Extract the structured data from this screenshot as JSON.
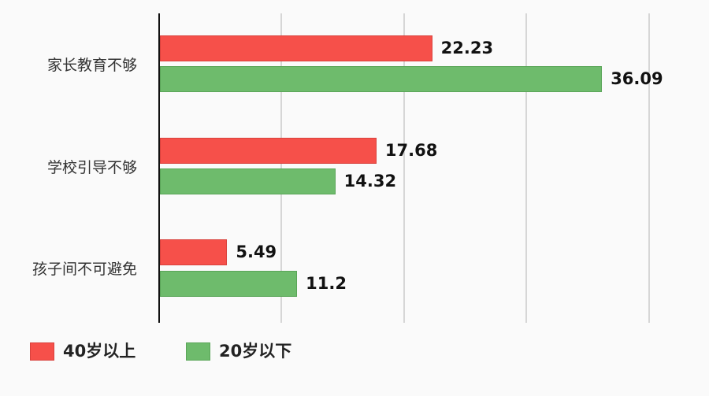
{
  "chart_data": {
    "type": "bar",
    "orientation": "horizontal",
    "title": "",
    "xlabel": "",
    "ylabel": "",
    "xlim": [
      0,
      40
    ],
    "grid": true,
    "gridlines_at": [
      10,
      20,
      30,
      40
    ],
    "tick_labels_visible": false,
    "legend_position": "bottom-left",
    "categories": [
      "家长教育不够",
      "学校引导不够",
      "孩子间不可避免"
    ],
    "series": [
      {
        "name": "40岁以上",
        "color": "#f6504a",
        "values": [
          22.23,
          17.68,
          5.49
        ]
      },
      {
        "name": "20岁以下",
        "color": "#6ebb6c",
        "values": [
          36.09,
          14.32,
          11.2
        ]
      }
    ],
    "value_labels": [
      [
        "22.23",
        "17.68",
        "5.49"
      ],
      [
        "36.09",
        "14.32",
        "11.2"
      ]
    ]
  },
  "colors": {
    "red": "#f6504a",
    "green": "#6ebb6c",
    "axis": "#111111",
    "grid": "#d6d6d6",
    "background": "#fafafa"
  },
  "legend": [
    {
      "label": "40岁以上",
      "color": "#f6504a"
    },
    {
      "label": "20岁以下",
      "color": "#6ebb6c"
    }
  ]
}
